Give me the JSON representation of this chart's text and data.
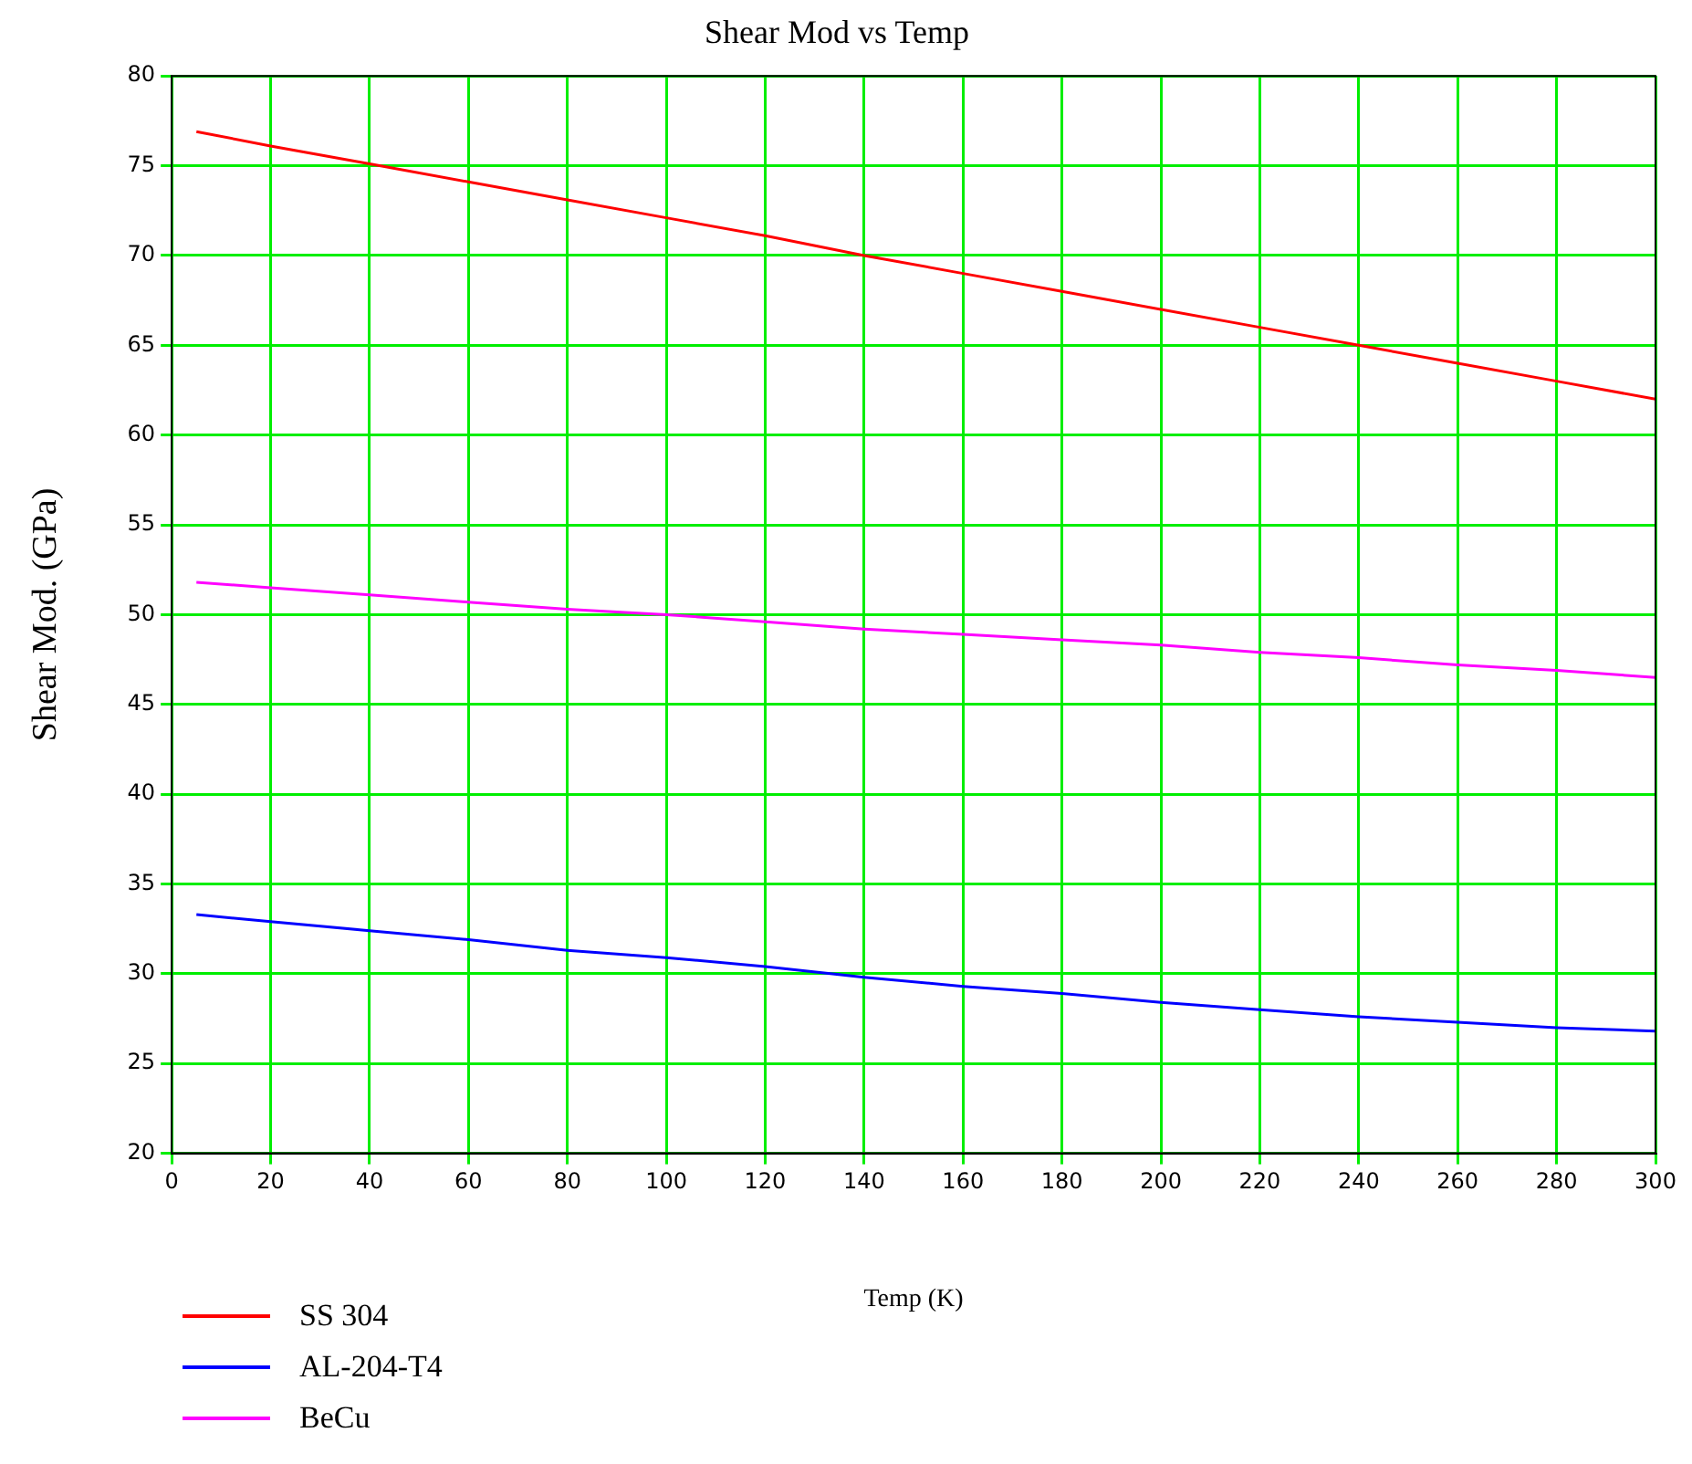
{
  "chart_data": {
    "type": "line",
    "title": "Shear Mod vs Temp",
    "xlabel": "Temp (K)",
    "ylabel": "Shear Mod. (GPa)",
    "x": [
      5,
      20,
      40,
      60,
      80,
      100,
      120,
      140,
      160,
      180,
      200,
      220,
      240,
      260,
      280,
      300
    ],
    "series": [
      {
        "name": "SS 304",
        "color": "#ff0000",
        "values": [
          76.9,
          76.1,
          75.1,
          74.1,
          73.1,
          72.1,
          71.1,
          70.0,
          69.0,
          68.0,
          67.0,
          66.0,
          65.0,
          64.0,
          63.0,
          62.0
        ]
      },
      {
        "name": "AL-204-T4",
        "color": "#0000ff",
        "values": [
          33.3,
          32.9,
          32.4,
          31.9,
          31.3,
          30.9,
          30.4,
          29.8,
          29.3,
          28.9,
          28.4,
          28.0,
          27.6,
          27.3,
          27.0,
          26.8
        ]
      },
      {
        "name": "BeCu",
        "color": "#ff00ff",
        "values": [
          51.8,
          51.5,
          51.1,
          50.7,
          50.3,
          50.0,
          49.6,
          49.2,
          48.9,
          48.6,
          48.3,
          47.9,
          47.6,
          47.2,
          46.9,
          46.5
        ]
      }
    ],
    "xlim": [
      0,
      300
    ],
    "xticks": [
      0,
      20,
      40,
      60,
      80,
      100,
      120,
      140,
      160,
      180,
      200,
      220,
      240,
      260,
      280,
      300
    ],
    "ylim": [
      20,
      80
    ],
    "yticks": [
      20,
      25,
      30,
      35,
      40,
      45,
      50,
      55,
      60,
      65,
      70,
      75,
      80
    ],
    "grid": true,
    "legend": "bottom left",
    "marker": "none",
    "line_style": "solid"
  }
}
